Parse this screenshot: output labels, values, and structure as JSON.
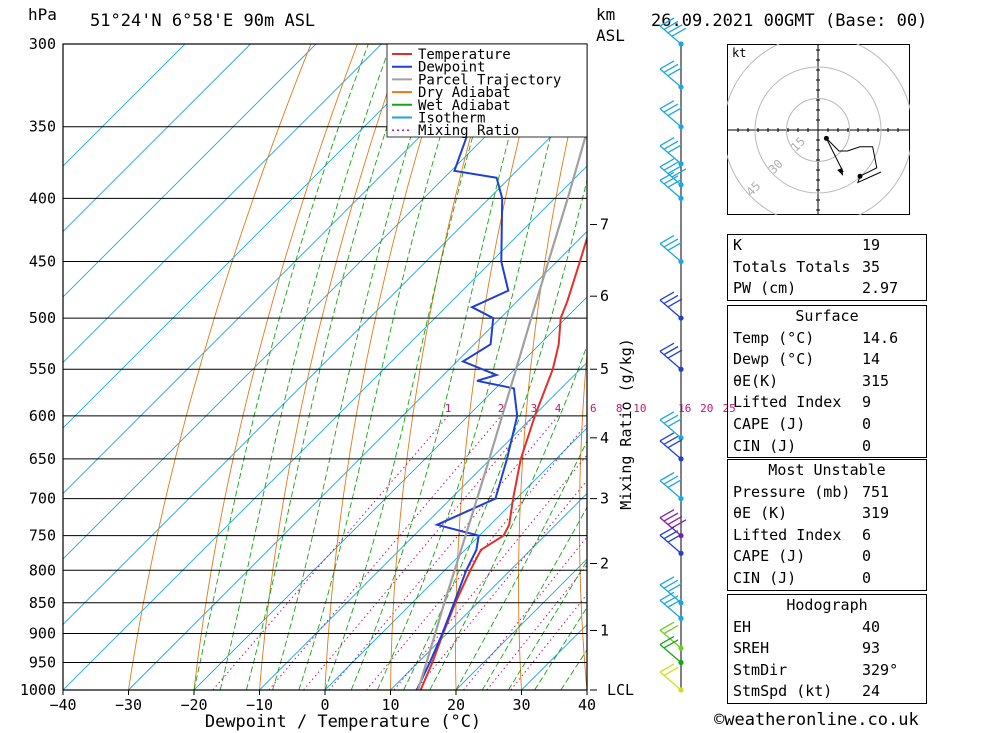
{
  "header": {
    "unit_hpa": "hPa",
    "location": "51°24'N  6°58'E  90m  ASL",
    "unit_km": "km",
    "unit_asl": "ASL",
    "datetime": "26.09.2021  00GMT  (Base: 00)"
  },
  "colors": {
    "temperature": "#e0302a",
    "dewpoint": "#1f3fd1",
    "parcel": "#a0a0a0",
    "dry_adiabat": "#e07a1a",
    "wet_adiabat": "#16a316",
    "isotherm": "#1aa6e0",
    "mixing_ratio": "#c0157a"
  },
  "legend": [
    {
      "label": "Temperature",
      "key": "temperature",
      "style": "solid"
    },
    {
      "label": "Dewpoint",
      "key": "dewpoint",
      "style": "solid"
    },
    {
      "label": "Parcel Trajectory",
      "key": "parcel",
      "style": "solid"
    },
    {
      "label": "Dry Adiabat",
      "key": "dry_adiabat",
      "style": "solid"
    },
    {
      "label": "Wet Adiabat",
      "key": "wet_adiabat",
      "style": "solid"
    },
    {
      "label": "Isotherm",
      "key": "isotherm",
      "style": "solid"
    },
    {
      "label": "Mixing Ratio",
      "key": "mixing_ratio",
      "style": "dotted"
    }
  ],
  "chart_data": {
    "type": "line",
    "xlabel": "Dewpoint / Temperature (°C)",
    "x_ticks": [
      -40,
      -30,
      -20,
      -10,
      0,
      10,
      20,
      30,
      40
    ],
    "xlim": [
      -40,
      40
    ],
    "y_ticks_hpa": [
      300,
      350,
      400,
      450,
      500,
      550,
      600,
      650,
      700,
      750,
      800,
      850,
      900,
      950,
      1000
    ],
    "ylim_hpa": [
      1000,
      300
    ],
    "y_scale": "log",
    "skew": true,
    "km_ticks": [
      {
        "label": "7",
        "p": 420
      },
      {
        "label": "6",
        "p": 480
      },
      {
        "label": "5",
        "p": 550
      },
      {
        "label": "4",
        "p": 625
      },
      {
        "label": "3",
        "p": 700
      },
      {
        "label": "2",
        "p": 790
      },
      {
        "label": "1",
        "p": 895
      },
      {
        "label": "LCL",
        "p": 1000
      }
    ],
    "right_axis_label": "Mixing Ratio (g/kg)",
    "mixing_ratio_labels": [
      1,
      2,
      3,
      4,
      6,
      8,
      10,
      16,
      20,
      25
    ],
    "series": [
      {
        "name": "Temperature",
        "key": "temperature",
        "points": [
          [
            1000,
            14.6
          ],
          [
            950,
            12.2
          ],
          [
            900,
            9.4
          ],
          [
            850,
            6.6
          ],
          [
            800,
            3.9
          ],
          [
            770,
            2.4
          ],
          [
            750,
            3.7
          ],
          [
            735,
            2.9
          ],
          [
            700,
            -0.5
          ],
          [
            650,
            -5.4
          ],
          [
            600,
            -9.8
          ],
          [
            550,
            -14.2
          ],
          [
            525,
            -17.1
          ],
          [
            500,
            -20.8
          ],
          [
            485,
            -22.3
          ],
          [
            450,
            -26.5
          ],
          [
            400,
            -33.2
          ],
          [
            370,
            -37.7
          ],
          [
            350,
            -41.1
          ],
          [
            300,
            -49.4
          ]
        ]
      },
      {
        "name": "Dewpoint",
        "key": "dewpoint",
        "points": [
          [
            1000,
            14
          ],
          [
            950,
            11.8
          ],
          [
            900,
            9.3
          ],
          [
            850,
            6.4
          ],
          [
            800,
            3.3
          ],
          [
            770,
            1.7
          ],
          [
            750,
            -0.1
          ],
          [
            735,
            -8.1
          ],
          [
            700,
            -3.2
          ],
          [
            650,
            -7.5
          ],
          [
            600,
            -12.5
          ],
          [
            570,
            -17.2
          ],
          [
            562,
            -24.0
          ],
          [
            556,
            -21.9
          ],
          [
            542,
            -29.1
          ],
          [
            525,
            -27.5
          ],
          [
            500,
            -31.1
          ],
          [
            490,
            -36.0
          ],
          [
            475,
            -33.0
          ],
          [
            450,
            -38.5
          ],
          [
            400,
            -48.0
          ],
          [
            385,
            -52.0
          ],
          [
            380,
            -59.5
          ],
          [
            300,
            -71.9
          ]
        ]
      },
      {
        "name": "Parcel Trajectory",
        "key": "parcel",
        "points": [
          [
            1000,
            14.2
          ],
          [
            950,
            11.3
          ],
          [
            900,
            8.2
          ],
          [
            850,
            4.9
          ],
          [
            800,
            1.5
          ],
          [
            750,
            -2.1
          ],
          [
            700,
            -6.0
          ],
          [
            650,
            -10.2
          ],
          [
            600,
            -14.8
          ],
          [
            550,
            -19.8
          ],
          [
            500,
            -25.3
          ],
          [
            450,
            -31.3
          ],
          [
            400,
            -38.0
          ],
          [
            350,
            -45.8
          ],
          [
            300,
            -54.8
          ]
        ]
      }
    ]
  },
  "hodograph": {
    "unit": "kt",
    "ring_labels": [
      "15",
      "30",
      "45"
    ],
    "points_uv": [
      [
        4,
        -4
      ],
      [
        10,
        -10
      ],
      [
        14,
        -10
      ],
      [
        20,
        -8
      ],
      [
        26,
        -8
      ],
      [
        28,
        -18
      ],
      [
        20,
        -22
      ],
      [
        19,
        -25
      ],
      [
        30,
        -20
      ]
    ],
    "storm_uv": [
      12,
      -20
    ]
  },
  "indices": [
    {
      "label": "K",
      "value": "19"
    },
    {
      "label": "Totals Totals",
      "value": "35"
    },
    {
      "label": "PW (cm)",
      "value": "2.97"
    }
  ],
  "surface": {
    "title": "Surface",
    "rows": [
      {
        "label": "Temp (°C)",
        "value": "14.6"
      },
      {
        "label": "Dewp (°C)",
        "value": "14"
      },
      {
        "label": "θE(K)",
        "value": "315"
      },
      {
        "label": "Lifted Index",
        "value": "9"
      },
      {
        "label": "CAPE (J)",
        "value": "0"
      },
      {
        "label": "CIN (J)",
        "value": "0"
      }
    ]
  },
  "most_unstable": {
    "title": "Most Unstable",
    "rows": [
      {
        "label": "Pressure (mb)",
        "value": "751"
      },
      {
        "label": "θE (K)",
        "value": "319"
      },
      {
        "label": "Lifted Index",
        "value": "6"
      },
      {
        "label": "CAPE (J)",
        "value": "0"
      },
      {
        "label": "CIN (J)",
        "value": "0"
      }
    ]
  },
  "hodograph_table": {
    "title": "Hodograph",
    "rows": [
      {
        "label": "EH",
        "value": "40"
      },
      {
        "label": "SREH",
        "value": "93"
      },
      {
        "label": "StmDir",
        "value": "329°"
      },
      {
        "label": "StmSpd (kt)",
        "value": "24"
      }
    ]
  },
  "wind_profile": [
    {
      "p": 300,
      "color": "#1aa6e0",
      "barbs": 4
    },
    {
      "p": 325,
      "color": "#1aa6e0",
      "barbs": 3
    },
    {
      "p": 350,
      "color": "#1aa6e0",
      "barbs": 3
    },
    {
      "p": 375,
      "color": "#1aa6e0",
      "barbs": 3
    },
    {
      "p": 390,
      "color": "#1aa6e0",
      "barbs": 4
    },
    {
      "p": 400,
      "color": "#1aa6e0",
      "barbs": 3
    },
    {
      "p": 450,
      "color": "#1aa6e0",
      "barbs": 3
    },
    {
      "p": 500,
      "color": "#1f3fd1",
      "barbs": 3
    },
    {
      "p": 550,
      "color": "#1f3fd1",
      "barbs": 3
    },
    {
      "p": 625,
      "color": "#1aa6e0",
      "barbs": 3
    },
    {
      "p": 650,
      "color": "#1f3fd1",
      "barbs": 3
    },
    {
      "p": 700,
      "color": "#1aa6e0",
      "barbs": 3
    },
    {
      "p": 750,
      "color": "#8a1aa6",
      "barbs": 4
    },
    {
      "p": 775,
      "color": "#1f3fd1",
      "barbs": 3
    },
    {
      "p": 850,
      "color": "#1aa6e0",
      "barbs": 3
    },
    {
      "p": 875,
      "color": "#1aa6e0",
      "barbs": 3
    },
    {
      "p": 925,
      "color": "#6ecf1a",
      "barbs": 2
    },
    {
      "p": 950,
      "color": "#16a316",
      "barbs": 2
    },
    {
      "p": 1000,
      "color": "#cfe01a",
      "barbs": 2
    }
  ],
  "footer": {
    "copyright": "©weatheronline.co.uk"
  }
}
